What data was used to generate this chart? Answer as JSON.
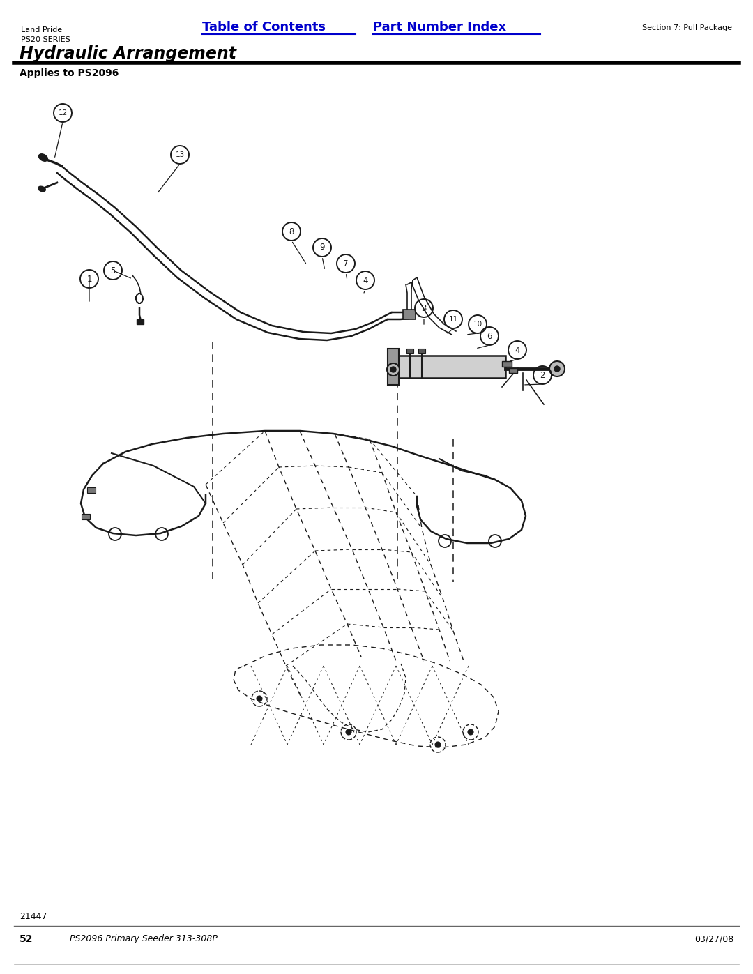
{
  "bg_color": "#ffffff",
  "page_width": 10.8,
  "page_height": 13.97,
  "header": {
    "left_line1": "Land Pride",
    "left_line2": "PS20 SERIES",
    "center_link1": "Table of Contents",
    "center_link2": "Part Number Index",
    "right_text": "Section 7: Pull Package",
    "title": "Hydraulic Arrangement",
    "subtitle": "Applies to PS2096"
  },
  "footer": {
    "left_num": "52",
    "center_text": "PS2096 Primary Seeder 313-308P",
    "right_text": "03/27/08"
  },
  "bottom_note": "21447",
  "link_color": "#0000cc",
  "text_color": "#000000",
  "dark_color": "#111111"
}
